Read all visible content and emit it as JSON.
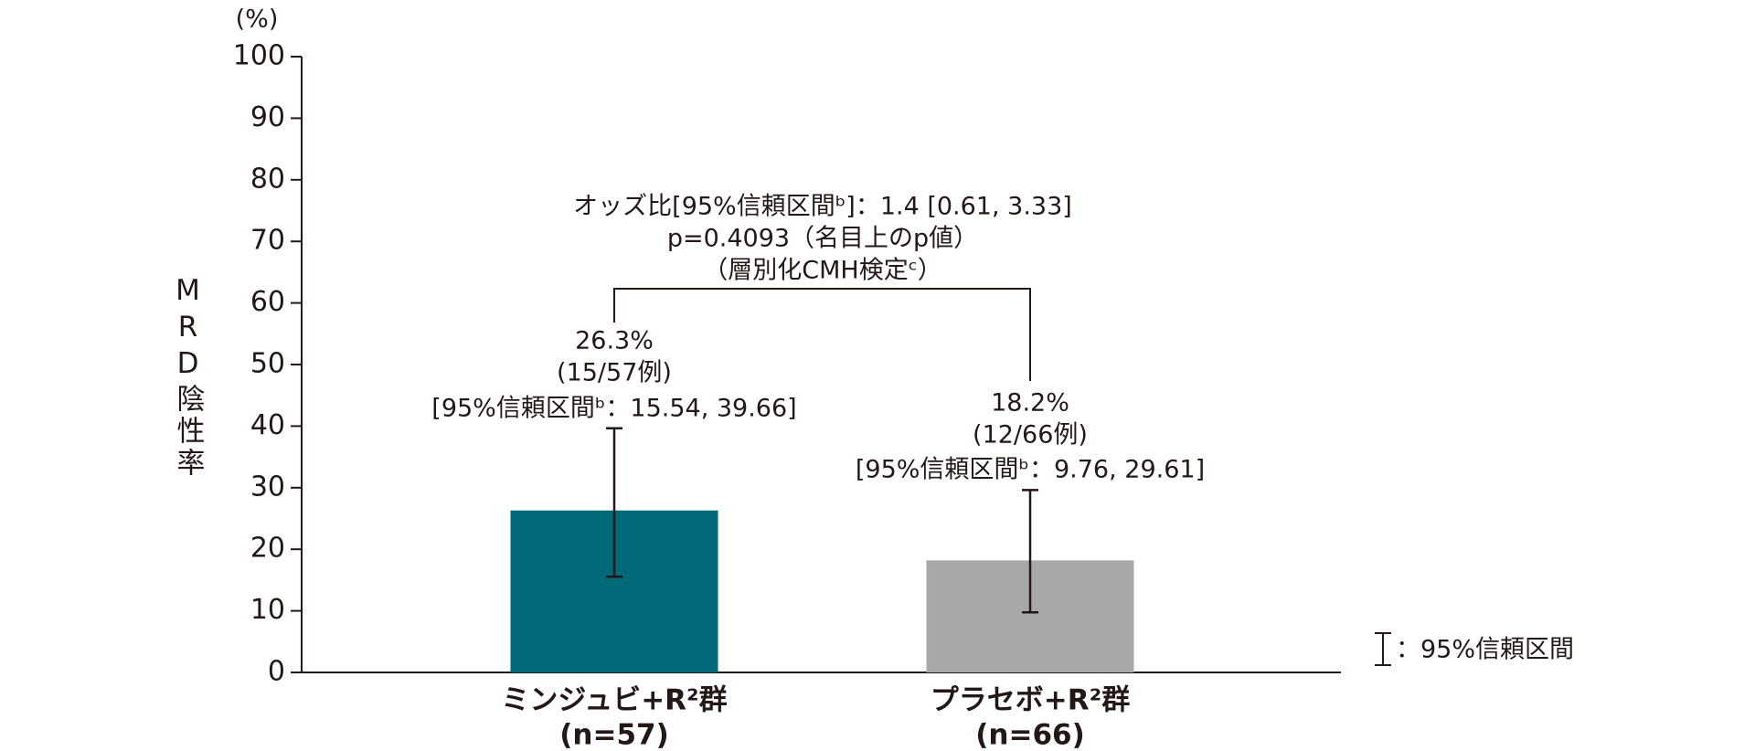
{
  "chart_data": {
    "type": "bar",
    "y_unit": "(%)",
    "y_label": "MRD陰性率",
    "categories": [
      "ミンジュビ+R²群",
      "プラセボ+R²群"
    ],
    "category_sublabels": [
      "(n=57)",
      "(n=66)"
    ],
    "values": [
      26.3,
      18.2
    ],
    "value_labels": [
      "26.3%",
      "18.2%"
    ],
    "count_labels": [
      "(15/57例)",
      "(12/66例)"
    ],
    "ci_low": [
      15.54,
      9.76
    ],
    "ci_high": [
      39.66,
      29.61
    ],
    "ci_labels": [
      "[95%信頼区間ᵇ：15.54, 39.66]",
      "[95%信頼区間ᵇ：9.76, 29.61]"
    ],
    "colors": [
      "#006a78",
      "#a7a9a8"
    ],
    "ylim": [
      0,
      100
    ],
    "yticks": [
      0,
      10,
      20,
      30,
      40,
      50,
      60,
      70,
      80,
      90,
      100
    ],
    "annotation": [
      "オッズ比[95%信頼区間ᵇ]：1.4 [0.61, 3.33]",
      "p=0.4093（名目上のp値）",
      "（層別化CMH検定ᶜ）"
    ],
    "legend": "：95%信頼区間"
  }
}
